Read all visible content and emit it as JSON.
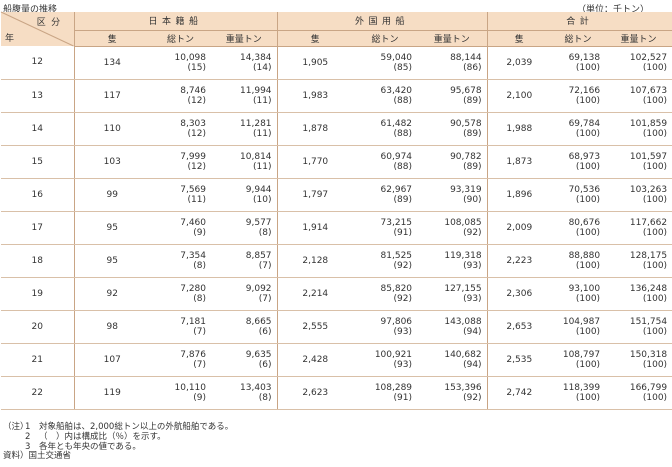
{
  "caption": "船腹量の推移",
  "unit": "（単位：千トン）",
  "header": {
    "corner_top": "区分",
    "corner_bottom": "年",
    "groups": [
      "日本籍船",
      "外国用船",
      "合計"
    ],
    "sub": [
      "隻",
      "総トン",
      "重量トン"
    ]
  },
  "rows": [
    {
      "year": "12",
      "jp": {
        "ships": "134",
        "gt": "10,098",
        "dwt": "14,384",
        "gt_pct": "(15)",
        "dwt_pct": "(14)"
      },
      "fo": {
        "ships": "1,905",
        "gt": "59,040",
        "dwt": "88,144",
        "gt_pct": "(85)",
        "dwt_pct": "(86)"
      },
      "tot": {
        "ships": "2,039",
        "gt": "69,138",
        "dwt": "102,527",
        "gt_pct": "(100)",
        "dwt_pct": "(100)"
      }
    },
    {
      "year": "13",
      "jp": {
        "ships": "117",
        "gt": "8,746",
        "dwt": "11,994",
        "gt_pct": "(12)",
        "dwt_pct": "(11)"
      },
      "fo": {
        "ships": "1,983",
        "gt": "63,420",
        "dwt": "95,678",
        "gt_pct": "(88)",
        "dwt_pct": "(89)"
      },
      "tot": {
        "ships": "2,100",
        "gt": "72,166",
        "dwt": "107,673",
        "gt_pct": "(100)",
        "dwt_pct": "(100)"
      }
    },
    {
      "year": "14",
      "jp": {
        "ships": "110",
        "gt": "8,303",
        "dwt": "11,281",
        "gt_pct": "(12)",
        "dwt_pct": "(11)"
      },
      "fo": {
        "ships": "1,878",
        "gt": "61,482",
        "dwt": "90,578",
        "gt_pct": "(88)",
        "dwt_pct": "(89)"
      },
      "tot": {
        "ships": "1,988",
        "gt": "69,784",
        "dwt": "101,859",
        "gt_pct": "(100)",
        "dwt_pct": "(100)"
      }
    },
    {
      "year": "15",
      "jp": {
        "ships": "103",
        "gt": "7,999",
        "dwt": "10,814",
        "gt_pct": "(12)",
        "dwt_pct": "(11)"
      },
      "fo": {
        "ships": "1,770",
        "gt": "60,974",
        "dwt": "90,782",
        "gt_pct": "(88)",
        "dwt_pct": "(89)"
      },
      "tot": {
        "ships": "1,873",
        "gt": "68,973",
        "dwt": "101,597",
        "gt_pct": "(100)",
        "dwt_pct": "(100)"
      }
    },
    {
      "year": "16",
      "jp": {
        "ships": "99",
        "gt": "7,569",
        "dwt": "9,944",
        "gt_pct": "(11)",
        "dwt_pct": "(10)"
      },
      "fo": {
        "ships": "1,797",
        "gt": "62,967",
        "dwt": "93,319",
        "gt_pct": "(89)",
        "dwt_pct": "(90)"
      },
      "tot": {
        "ships": "1,896",
        "gt": "70,536",
        "dwt": "103,263",
        "gt_pct": "(100)",
        "dwt_pct": "(100)"
      }
    },
    {
      "year": "17",
      "jp": {
        "ships": "95",
        "gt": "7,460",
        "dwt": "9,577",
        "gt_pct": "(9)",
        "dwt_pct": "(8)"
      },
      "fo": {
        "ships": "1,914",
        "gt": "73,215",
        "dwt": "108,085",
        "gt_pct": "(91)",
        "dwt_pct": "(92)"
      },
      "tot": {
        "ships": "2,009",
        "gt": "80,676",
        "dwt": "117,662",
        "gt_pct": "(100)",
        "dwt_pct": "(100)"
      }
    },
    {
      "year": "18",
      "jp": {
        "ships": "95",
        "gt": "7,354",
        "dwt": "8,857",
        "gt_pct": "(8)",
        "dwt_pct": "(7)"
      },
      "fo": {
        "ships": "2,128",
        "gt": "81,525",
        "dwt": "119,318",
        "gt_pct": "(92)",
        "dwt_pct": "(93)"
      },
      "tot": {
        "ships": "2,223",
        "gt": "88,880",
        "dwt": "128,175",
        "gt_pct": "(100)",
        "dwt_pct": "(100)"
      }
    },
    {
      "year": "19",
      "jp": {
        "ships": "92",
        "gt": "7,280",
        "dwt": "9,092",
        "gt_pct": "(8)",
        "dwt_pct": "(7)"
      },
      "fo": {
        "ships": "2,214",
        "gt": "85,820",
        "dwt": "127,155",
        "gt_pct": "(92)",
        "dwt_pct": "(93)"
      },
      "tot": {
        "ships": "2,306",
        "gt": "93,100",
        "dwt": "136,248",
        "gt_pct": "(100)",
        "dwt_pct": "(100)"
      }
    },
    {
      "year": "20",
      "jp": {
        "ships": "98",
        "gt": "7,181",
        "dwt": "8,665",
        "gt_pct": "(7)",
        "dwt_pct": "(6)"
      },
      "fo": {
        "ships": "2,555",
        "gt": "97,806",
        "dwt": "143,088",
        "gt_pct": "(93)",
        "dwt_pct": "(94)"
      },
      "tot": {
        "ships": "2,653",
        "gt": "104,987",
        "dwt": "151,754",
        "gt_pct": "(100)",
        "dwt_pct": "(100)"
      }
    },
    {
      "year": "21",
      "jp": {
        "ships": "107",
        "gt": "7,876",
        "dwt": "9,635",
        "gt_pct": "(7)",
        "dwt_pct": "(6)"
      },
      "fo": {
        "ships": "2,428",
        "gt": "100,921",
        "dwt": "140,682",
        "gt_pct": "(93)",
        "dwt_pct": "(94)"
      },
      "tot": {
        "ships": "2,535",
        "gt": "108,797",
        "dwt": "150,318",
        "gt_pct": "(100)",
        "dwt_pct": "(100)"
      }
    },
    {
      "year": "22",
      "jp": {
        "ships": "119",
        "gt": "10,110",
        "dwt": "13,403",
        "gt_pct": "(9)",
        "dwt_pct": "(8)"
      },
      "fo": {
        "ships": "2,623",
        "gt": "108,289",
        "dwt": "153,396",
        "gt_pct": "(91)",
        "dwt_pct": "(92)"
      },
      "tot": {
        "ships": "2,742",
        "gt": "118,399",
        "dwt": "166,799",
        "gt_pct": "(100)",
        "dwt_pct": "(100)"
      }
    }
  ],
  "notes": {
    "note_label": "（注）",
    "items": [
      {
        "no": "1",
        "text": "対象船舶は、2,000総トン以上の外航船舶である。"
      },
      {
        "no": "2",
        "text": "（　）内は構成比（％）を示す。"
      },
      {
        "no": "3",
        "text": "各年とも年央の値である。"
      }
    ],
    "source_label": "資料）",
    "source_text": "国土交通省"
  }
}
